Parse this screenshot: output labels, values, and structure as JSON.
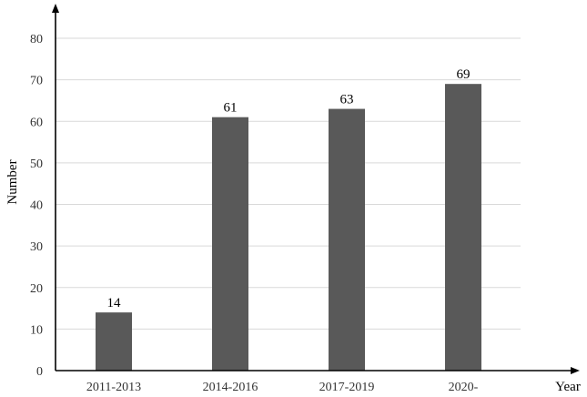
{
  "chart_data": {
    "type": "bar",
    "categories": [
      "2011-2013",
      "2014-2016",
      "2017-2019",
      "2020-"
    ],
    "values": [
      14,
      61,
      63,
      69
    ],
    "data_labels": [
      "14",
      "61",
      "63",
      "69"
    ],
    "xlabel": "Year",
    "ylabel": "Number",
    "ylim": [
      0,
      80
    ],
    "yticks": [
      0,
      10,
      20,
      30,
      40,
      50,
      60,
      70,
      80
    ],
    "ytick_labels": [
      "0",
      "10",
      "20",
      "30",
      "40",
      "50",
      "60",
      "70",
      "80"
    ],
    "grid": true,
    "legend": "none",
    "colors": {
      "bar": "#595959",
      "grid": "#d9d9d9",
      "axis": "#000000"
    }
  }
}
